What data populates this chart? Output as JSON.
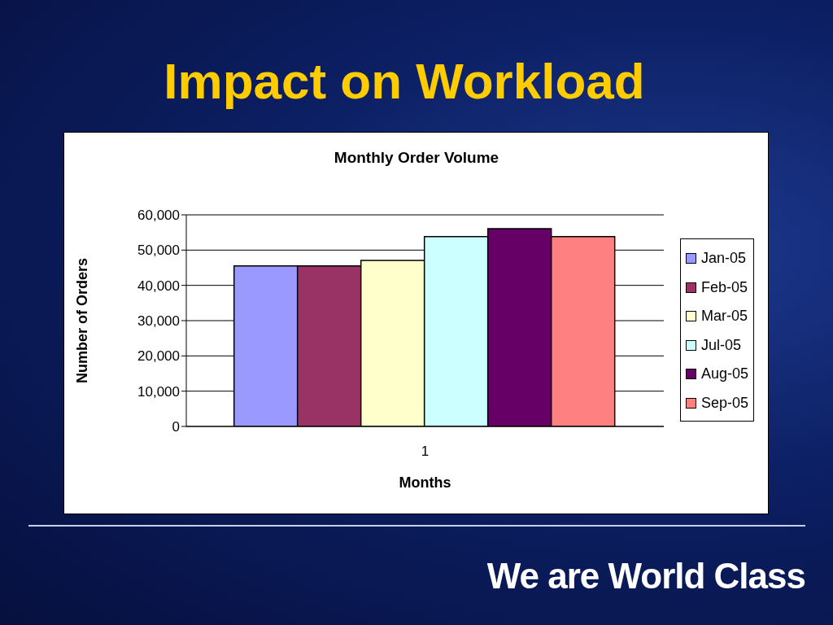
{
  "chart_data": {
    "type": "bar",
    "title": "Impact on Workload",
    "subtitle": "Monthly Order Volume",
    "xlabel": "Months",
    "ylabel": "Number of Orders",
    "categories": [
      "1"
    ],
    "series": [
      {
        "name": "Jan-05",
        "color": "#9999ff",
        "values": [
          45500
        ]
      },
      {
        "name": "Feb-05",
        "color": "#993366",
        "values": [
          45500
        ]
      },
      {
        "name": "Mar-05",
        "color": "#ffffcc",
        "values": [
          47100
        ]
      },
      {
        "name": "Jul-05",
        "color": "#ccffff",
        "values": [
          53800
        ]
      },
      {
        "name": "Aug-05",
        "color": "#660066",
        "values": [
          56100
        ]
      },
      {
        "name": "Sep-05",
        "color": "#ff8080",
        "values": [
          53800
        ]
      }
    ],
    "ylim": [
      0,
      60000
    ],
    "yticks": [
      0,
      {
        "value": 10000,
        "label": "10,000"
      },
      {
        "value": 20000,
        "label": "20,000"
      },
      {
        "value": 30000,
        "label": "30,000"
      },
      {
        "value": 40000,
        "label": "40,000"
      },
      {
        "value": 50000,
        "label": "50,000"
      },
      {
        "value": 60000,
        "label": "60,000"
      }
    ],
    "grid": "y",
    "legend": "right",
    "annotations": [
      "We are World Class"
    ]
  }
}
